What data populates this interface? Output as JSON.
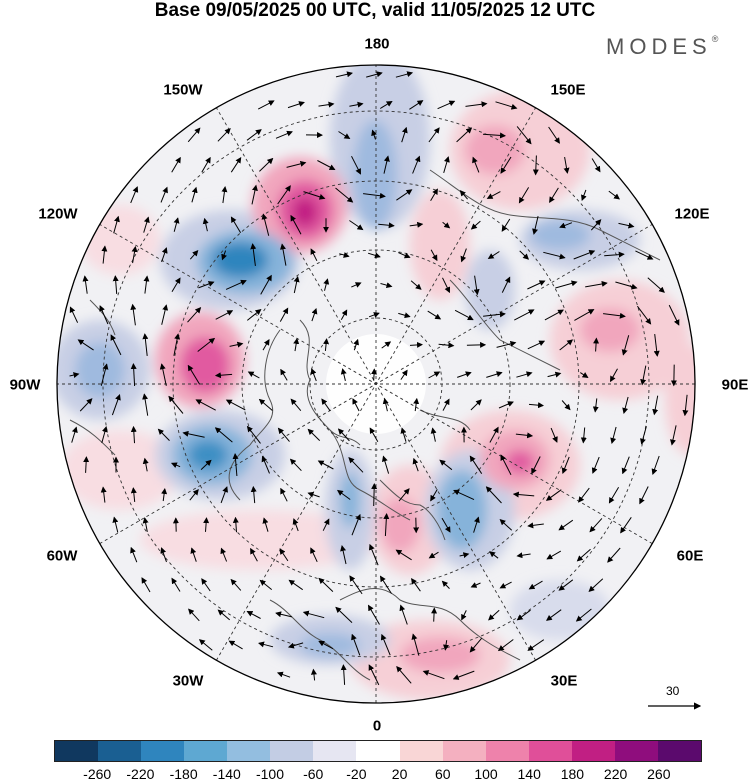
{
  "title": "Base 09/05/2025 00 UTC, valid 11/05/2025 12 UTC",
  "brand": {
    "text": "MODES",
    "mark": "®"
  },
  "longitude_labels": [
    {
      "id": "180",
      "text": "180"
    },
    {
      "id": "150W",
      "text": "150W"
    },
    {
      "id": "150E",
      "text": "150E"
    },
    {
      "id": "120W",
      "text": "120W"
    },
    {
      "id": "120E",
      "text": "120E"
    },
    {
      "id": "90W",
      "text": "90W"
    },
    {
      "id": "90E",
      "text": "90E"
    },
    {
      "id": "60W",
      "text": "60W"
    },
    {
      "id": "60E",
      "text": "60E"
    },
    {
      "id": "30W",
      "text": "30W"
    },
    {
      "id": "30E",
      "text": "30E"
    },
    {
      "id": "0",
      "text": "0"
    }
  ],
  "reference_vector": {
    "label": "30"
  },
  "colorbar": {
    "colors": [
      "#10385f",
      "#1a5f92",
      "#2f85be",
      "#5ea8d2",
      "#93bee0",
      "#c3cde4",
      "#e6e6f2",
      "#ffffff",
      "#f9d6d6",
      "#f4b0c0",
      "#ee82ab",
      "#e04f99",
      "#c11f83",
      "#8f0d7d",
      "#5b0a6d"
    ],
    "ticks": [
      "-260",
      "-220",
      "-180",
      "-140",
      "-100",
      "-60",
      "-20",
      "20",
      "60",
      "100",
      "140",
      "180",
      "220",
      "260"
    ]
  },
  "anomaly_centers": [
    {
      "sign": "positive",
      "strength": 220,
      "location": "near 160W"
    },
    {
      "sign": "negative",
      "strength": -180,
      "location": "near 135W"
    },
    {
      "sign": "positive",
      "strength": 180,
      "location": "near 95W"
    },
    {
      "sign": "negative",
      "strength": -140,
      "location": "near 65W"
    },
    {
      "sign": "negative",
      "strength": -100,
      "location": "near 175E"
    },
    {
      "sign": "positive",
      "strength": 100,
      "location": "near 160E"
    },
    {
      "sign": "negative",
      "strength": -100,
      "location": "near 125E"
    },
    {
      "sign": "positive",
      "strength": 140,
      "location": "near 100E"
    },
    {
      "sign": "positive",
      "strength": 140,
      "location": "near 55E"
    },
    {
      "sign": "negative",
      "strength": -140,
      "location": "near 35E"
    },
    {
      "sign": "positive",
      "strength": 100,
      "location": "near 10E"
    },
    {
      "sign": "negative",
      "strength": -100,
      "location": "near 10W"
    }
  ]
}
